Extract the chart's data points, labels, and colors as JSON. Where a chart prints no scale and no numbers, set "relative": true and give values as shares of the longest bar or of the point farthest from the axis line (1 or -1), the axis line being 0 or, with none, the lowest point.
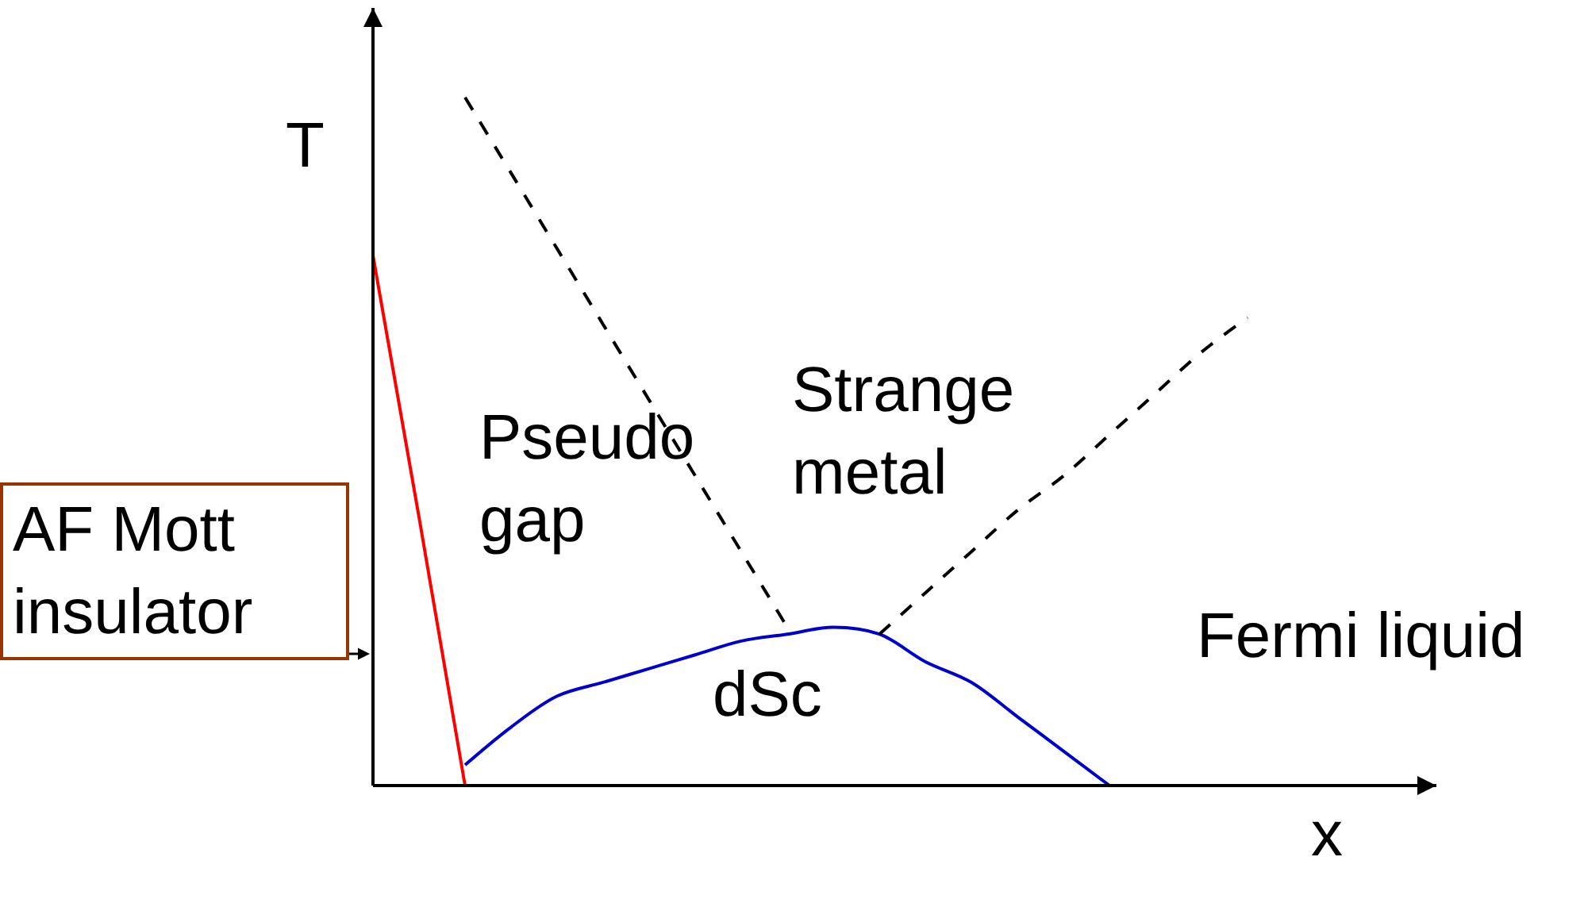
{
  "chart_data": {
    "type": "line",
    "relative": true,
    "xlabel": "x",
    "ylabel": "T",
    "categories": [
      null,
      null,
      null,
      null,
      null,
      null,
      null,
      null,
      null,
      null,
      null,
      null,
      null,
      null,
      null,
      null,
      null,
      null,
      null,
      null,
      null,
      null,
      null,
      null
    ],
    "series": [
      {
        "color": "#ff0000",
        "line_style": "solid",
        "values": [
          0.77,
          0.39,
          0,
          null,
          null,
          null,
          null,
          null,
          null,
          null,
          null,
          null,
          null,
          null,
          null,
          null,
          null,
          null,
          null,
          null,
          null,
          null,
          null,
          null
        ]
      },
      {
        "color": "#0000cc",
        "line_style": "solid",
        "values": [
          null,
          null,
          0.03,
          0.085,
          0.13,
          0.15,
          0.17,
          0.19,
          0.21,
          0.22,
          0.23,
          0.22,
          0.18,
          0.15,
          0.1,
          0.05,
          0,
          null,
          null,
          null,
          null,
          null,
          null,
          null
        ]
      },
      {
        "color": "#000000",
        "line_style": "dashed",
        "values": [
          null,
          null,
          1.0,
          0.89,
          0.78,
          0.67,
          0.56,
          0.45,
          0.34,
          0.23,
          null,
          null,
          null,
          null,
          null,
          null,
          null,
          null,
          null,
          null,
          null,
          null,
          null,
          null
        ]
      },
      {
        "color": "#000000",
        "line_style": "dashed",
        "values": [
          null,
          null,
          null,
          null,
          null,
          null,
          null,
          null,
          null,
          null,
          null,
          0.22,
          0.28,
          0.34,
          0.4,
          0.45,
          0.51,
          0.57,
          0.63,
          0.68,
          null,
          null,
          null,
          null
        ]
      }
    ],
    "annotations": [
      "Pseudo\ngap",
      "Strange\nmetal",
      "dSc",
      "Fermi liquid",
      "AF Mott\ninsulator"
    ]
  }
}
